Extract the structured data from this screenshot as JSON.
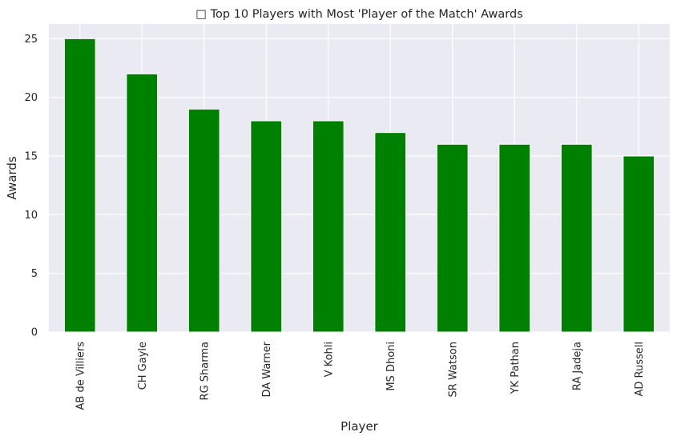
{
  "chart_data": {
    "type": "bar",
    "title": "□ Top 10 Players with Most 'Player of the Match' Awards",
    "xlabel": "Player",
    "ylabel": "Awards",
    "categories": [
      "AB de Villiers",
      "CH Gayle",
      "RG Sharma",
      "DA Warner",
      "V Kohli",
      "MS Dhoni",
      "SR Watson",
      "YK Pathan",
      "RA Jadeja",
      "AD Russell"
    ],
    "values": [
      25,
      22,
      19,
      18,
      18,
      17,
      16,
      16,
      16,
      15
    ],
    "ylim": [
      0,
      26.25
    ],
    "yticks": [
      0,
      5,
      10,
      15,
      20,
      25
    ],
    "grid": true,
    "bar_color": "#008000",
    "background_color": "#eaeaf2"
  }
}
